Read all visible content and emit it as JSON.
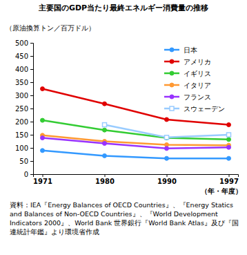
{
  "chart_data": {
    "type": "line",
    "title": "主要国のGDP当たり最終エネルギー消費量の推移",
    "y_label": "（原油換算トン／百万ドル）",
    "x_label": "（年・年度）",
    "source": "資料：IEA『Energy Balances of OECD Countries』、『Energy Statics and Balances of Non-OECD Countries』、『World Development Indicators 2000』、World Bank 世界銀行『World Bank Atlas』及び『国連統計年鑑』より環境省作成",
    "categories": [
      "1971",
      "1980",
      "1990",
      "1997"
    ],
    "series": [
      {
        "name": "日本",
        "color": "#3399ff",
        "marker": "circle",
        "values": [
          90,
          70,
          60,
          60
        ]
      },
      {
        "name": "アメリカ",
        "color": "#e00000",
        "marker": "circle",
        "values": [
          325,
          268,
          208,
          188
        ]
      },
      {
        "name": "イギリス",
        "color": "#33cc33",
        "marker": "circle",
        "values": [
          205,
          168,
          138,
          132
        ]
      },
      {
        "name": "イタリア",
        "color": "#ff9933",
        "marker": "circle",
        "values": [
          148,
          125,
          112,
          110
        ]
      },
      {
        "name": "フランス",
        "color": "#9933ff",
        "marker": "circle",
        "values": [
          138,
          117,
          98,
          102
        ]
      },
      {
        "name": "スウェーデン",
        "color": "#99ccff",
        "marker": "square-open",
        "values": [
          null,
          188,
          140,
          150
        ]
      }
    ],
    "ylim": [
      0,
      500
    ],
    "yticks": [
      0,
      50,
      100,
      150,
      200,
      250,
      300,
      350,
      400,
      450,
      500
    ],
    "grid": false,
    "legend": "upper right"
  }
}
